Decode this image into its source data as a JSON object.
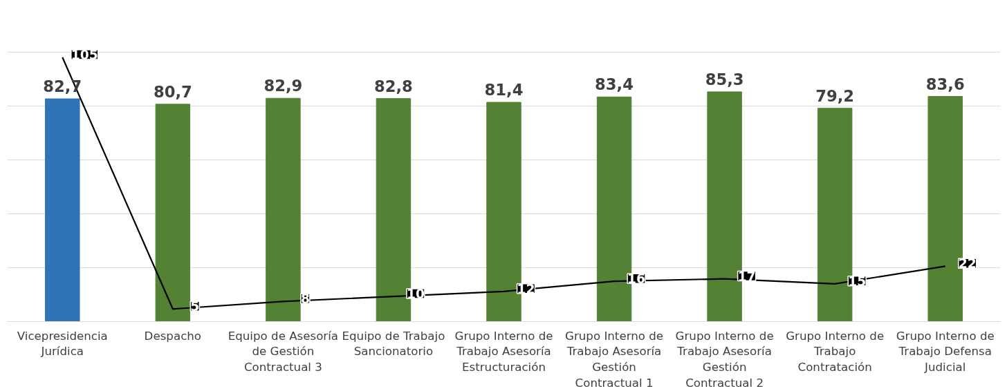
{
  "chart_data": {
    "type": "bar",
    "categories": [
      "Vicepresidencia Jurídica",
      "Despacho",
      "Equipo de Asesoría de Gestión Contractual 3",
      "Equipo de Trabajo Sancionatorio",
      "Grupo Interno de Trabajo Asesoría Estructuración",
      "Grupo Interno de Trabajo Asesoría Gestión Contractual 1",
      "Grupo Interno de Trabajo Asesoría Gestión Contractual 2",
      "Grupo Interno de Trabajo Contratación",
      "Grupo Interno de Trabajo Defensa Judicial"
    ],
    "series": [
      {
        "colors": [
          "#2e75b6",
          "#548235",
          "#548235",
          "#548235",
          "#548235",
          "#548235",
          "#548235",
          "#548235",
          "#548235"
        ],
        "values": [
          82.7,
          80.7,
          82.9,
          82.8,
          81.4,
          83.4,
          85.3,
          79.2,
          83.6
        ],
        "value_labels": [
          "82,7",
          "80,7",
          "82,9",
          "82,8",
          "81,4",
          "83,4",
          "85,3",
          "79,2",
          "83,6"
        ]
      },
      {
        "type": "line",
        "axis": "y2",
        "color": "#000000",
        "values": [
          105,
          5,
          8,
          10,
          12,
          16,
          17,
          15,
          22
        ],
        "value_labels": [
          "105",
          "5",
          "8",
          "10",
          "12",
          "16",
          "17",
          "15",
          "22"
        ]
      }
    ],
    "grid": "y",
    "tick_labels": "x"
  }
}
